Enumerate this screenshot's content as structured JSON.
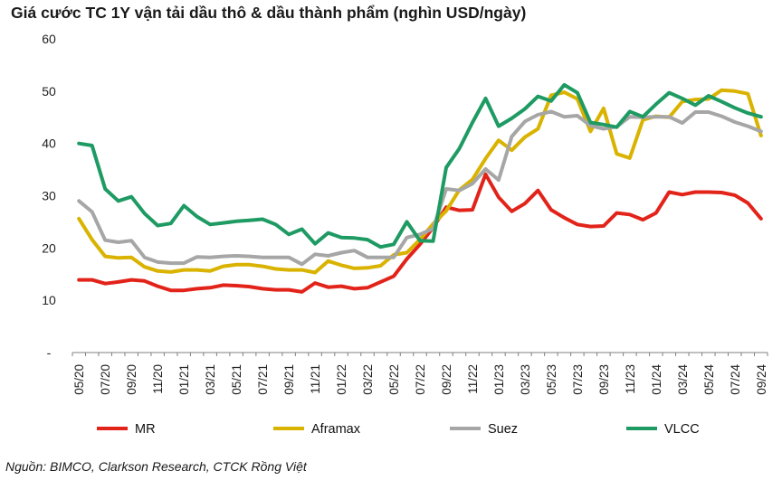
{
  "chart_data": {
    "type": "line",
    "title": "Giá cước TC 1Y vận tải dầu thô & dầu thành phẩm (nghìn USD/ngày)",
    "source": "Nguồn: BIMCO, Clarkson Research, CTCK Rồng Việt",
    "xlabel": "",
    "ylabel": "",
    "ylim": [
      0,
      60
    ],
    "yticks": [
      0,
      10,
      20,
      30,
      40,
      50,
      60
    ],
    "ytick_labels": [
      "-",
      "10",
      "20",
      "30",
      "40",
      "50",
      "60"
    ],
    "xtick_labels": [
      "05/20",
      "07/20",
      "09/20",
      "11/20",
      "01/21",
      "03/21",
      "05/21",
      "07/21",
      "09/21",
      "11/21",
      "01/22",
      "03/22",
      "05/22",
      "07/22",
      "09/22",
      "11/22",
      "01/23",
      "03/23",
      "05/23",
      "07/23",
      "09/23",
      "11/23",
      "01/24",
      "03/24",
      "05/24",
      "07/24",
      "09/24"
    ],
    "grid": false,
    "legend_position": "bottom",
    "colors": {
      "MR": "#e2231a",
      "Aframax": "#d9b300",
      "Suez": "#a6a6a6",
      "VLCC": "#1e9a63"
    },
    "series": [
      {
        "name": "MR",
        "values": [
          13.9,
          13.9,
          13.2,
          13.5,
          13.9,
          13.7,
          12.7,
          11.9,
          11.9,
          12.2,
          12.4,
          12.9,
          12.8,
          12.6,
          12.2,
          12.0,
          12.0,
          11.6,
          13.3,
          12.5,
          12.7,
          12.2,
          12.4,
          13.5,
          14.6,
          17.9,
          20.7,
          23.9,
          27.8,
          27.2,
          27.3,
          34.1,
          29.7,
          27.0,
          28.5,
          31.0,
          27.3,
          25.8,
          24.5,
          24.1,
          24.2,
          26.7,
          26.4,
          25.4,
          26.7,
          30.7,
          30.2,
          30.7,
          30.7,
          30.6,
          30.1,
          28.6,
          25.6
        ]
      },
      {
        "name": "Aframax",
        "values": [
          25.6,
          21.6,
          18.4,
          18.1,
          18.2,
          16.4,
          15.6,
          15.4,
          15.8,
          15.8,
          15.6,
          16.5,
          16.8,
          16.8,
          16.5,
          16.0,
          15.8,
          15.8,
          15.3,
          17.5,
          16.7,
          16.1,
          16.2,
          16.6,
          18.7,
          19.1,
          21.6,
          24.6,
          27.1,
          31.1,
          33.1,
          37.1,
          40.6,
          38.7,
          41.2,
          42.8,
          49.2,
          49.8,
          48.5,
          42.3,
          46.7,
          38.0,
          37.2,
          44.5,
          45.2,
          45.0,
          48.0,
          48.4,
          48.5,
          50.2,
          50.0,
          49.5,
          41.5
        ]
      },
      {
        "name": "Suez",
        "values": [
          29.0,
          26.9,
          21.5,
          21.1,
          21.4,
          18.2,
          17.3,
          17.1,
          17.1,
          18.3,
          18.2,
          18.4,
          18.5,
          18.4,
          18.2,
          18.2,
          18.2,
          16.9,
          18.8,
          18.5,
          19.1,
          19.5,
          18.2,
          18.2,
          18.2,
          22.0,
          22.6,
          23.7,
          31.3,
          31.0,
          32.3,
          35.1,
          33.0,
          41.3,
          44.2,
          45.5,
          46.1,
          45.1,
          45.3,
          43.4,
          42.8,
          43.2,
          45.1,
          45.0,
          45.1,
          45.1,
          43.9,
          46.0,
          46.0,
          45.2,
          44.1,
          43.3,
          42.3
        ]
      },
      {
        "name": "VLCC",
        "values": [
          40.0,
          39.6,
          31.3,
          29.0,
          29.8,
          26.6,
          24.3,
          24.7,
          28.1,
          26.0,
          24.5,
          24.8,
          25.1,
          25.3,
          25.5,
          24.5,
          22.6,
          23.6,
          20.8,
          22.9,
          22.0,
          21.9,
          21.6,
          20.2,
          20.7,
          25.0,
          21.4,
          21.3,
          35.4,
          39.0,
          44.0,
          48.6,
          43.3,
          44.8,
          46.6,
          49.0,
          48.1,
          51.2,
          49.7,
          44.0,
          43.6,
          43.1,
          46.1,
          45.1,
          47.5,
          49.7,
          48.6,
          47.3,
          49.1,
          48.0,
          46.8,
          45.8,
          45.1
        ]
      }
    ]
  }
}
